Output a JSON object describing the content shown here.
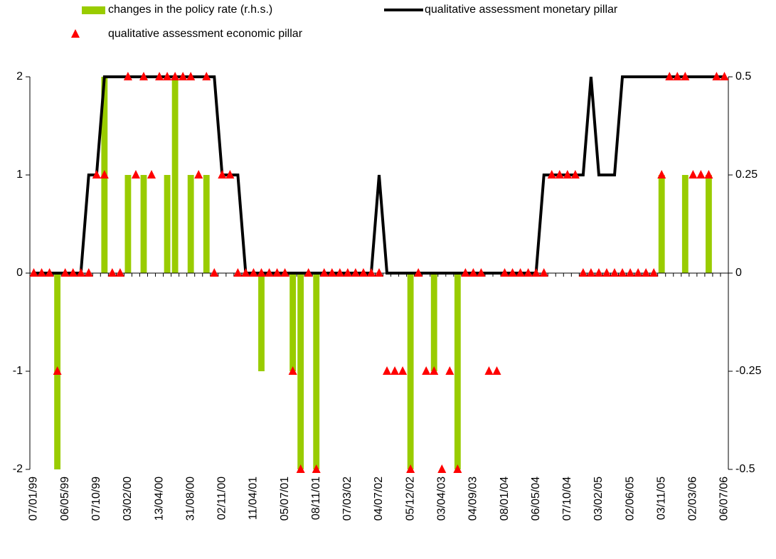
{
  "chart_data": {
    "type": "combo",
    "categories": [
      "07/01/99",
      null,
      null,
      null,
      "06/05/99",
      null,
      null,
      null,
      "07/10/99",
      null,
      null,
      null,
      "03/02/00",
      null,
      null,
      null,
      "13/04/00",
      null,
      null,
      null,
      "31/08/00",
      null,
      null,
      null,
      "02/11/00",
      null,
      null,
      null,
      "11/04/01",
      null,
      null,
      null,
      "05/07/01",
      null,
      null,
      null,
      "08/11/01",
      null,
      null,
      null,
      "07/03/02",
      null,
      null,
      null,
      "04/07/02",
      null,
      null,
      null,
      "05/12/02",
      null,
      null,
      null,
      "03/04/03",
      null,
      null,
      null,
      "04/09/03",
      null,
      null,
      null,
      "08/01/04",
      null,
      null,
      null,
      "06/05/04",
      null,
      null,
      null,
      "07/10/04",
      null,
      null,
      null,
      "03/02/05",
      null,
      null,
      null,
      "02/06/05",
      null,
      null,
      null,
      "03/11/05",
      null,
      null,
      null,
      "02/03/06",
      null,
      null,
      null,
      "06/07/06"
    ],
    "series": [
      {
        "name": "changes in the policy rate (r.h.s.)",
        "type": "bar",
        "axis": "y2",
        "color": "#99cc00",
        "values": [
          0,
          0,
          0,
          -0.5,
          0,
          0,
          0,
          0,
          0,
          0.5,
          0,
          0,
          0.25,
          0,
          0.25,
          0,
          0,
          0.25,
          0.5,
          0,
          0.25,
          0,
          0.25,
          0,
          0,
          0,
          0,
          0,
          0,
          -0.25,
          0,
          0,
          0,
          -0.25,
          -0.5,
          0,
          -0.5,
          0,
          0,
          0,
          0,
          0,
          0,
          0,
          0,
          0,
          0,
          0,
          -0.5,
          0,
          0,
          -0.25,
          0,
          0,
          -0.5,
          0,
          0,
          0,
          0,
          0,
          0,
          0,
          0,
          0,
          0,
          0,
          0,
          0,
          0,
          0,
          0,
          0,
          0,
          0,
          0,
          0,
          0,
          0,
          0,
          0,
          0.25,
          0,
          0,
          0.25,
          0,
          0,
          0.25,
          0,
          0
        ]
      },
      {
        "name": "qualitative assessment monetary pillar",
        "type": "line",
        "axis": "y",
        "color": "#000000",
        "values": [
          0,
          0,
          0,
          0,
          0,
          0,
          0,
          1,
          1,
          2,
          2,
          2,
          2,
          2,
          2,
          2,
          2,
          2,
          2,
          2,
          2,
          2,
          2,
          2,
          1,
          1,
          1,
          0,
          0,
          0,
          0,
          0,
          0,
          0,
          0,
          0,
          0,
          0,
          0,
          0,
          0,
          0,
          0,
          0,
          1,
          0,
          0,
          0,
          0,
          0,
          0,
          0,
          0,
          0,
          0,
          0,
          0,
          0,
          0,
          0,
          0,
          0,
          0,
          0,
          0,
          1,
          1,
          1,
          1,
          1,
          1,
          2,
          1,
          1,
          1,
          2,
          2,
          2,
          2,
          2,
          2,
          2,
          2,
          2,
          2,
          2,
          2,
          2,
          2
        ]
      },
      {
        "name": "qualitative assessment economic pillar",
        "type": "scatter",
        "axis": "y",
        "color": "#ff0000",
        "values": [
          0,
          0,
          0,
          -1,
          0,
          0,
          0,
          0,
          1,
          1,
          0,
          0,
          2,
          1,
          2,
          1,
          2,
          2,
          2,
          2,
          2,
          1,
          2,
          0,
          1,
          1,
          0,
          0,
          0,
          0,
          0,
          0,
          0,
          -1,
          -2,
          0,
          -2,
          0,
          0,
          0,
          0,
          0,
          0,
          0,
          0,
          -1,
          -1,
          -1,
          -2,
          0,
          -1,
          -1,
          -2,
          -1,
          -2,
          0,
          0,
          0,
          -1,
          -1,
          0,
          0,
          0,
          0,
          0,
          0,
          1,
          1,
          1,
          1,
          0,
          0,
          0,
          0,
          0,
          0,
          0,
          0,
          0,
          0,
          1,
          2,
          2,
          2,
          1,
          1,
          1,
          2,
          2
        ]
      }
    ],
    "ylim": [
      -2,
      2
    ],
    "yticks": [
      -2,
      -1,
      0,
      1,
      2
    ],
    "y2lim": [
      -0.5,
      0.5
    ],
    "y2ticks": [
      -0.5,
      -0.25,
      0,
      0.25,
      0.5
    ],
    "grid": false
  }
}
